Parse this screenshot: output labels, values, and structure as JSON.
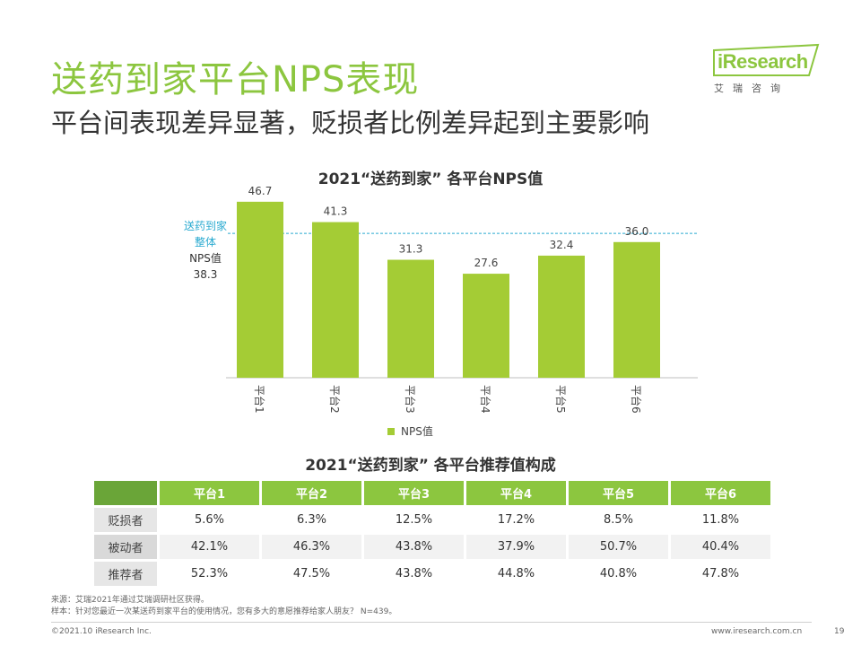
{
  "header": {
    "title": "送药到家平台NPS表现",
    "subtitle": "平台间表现差异显著，贬损者比例差异起到主要影响"
  },
  "logo": {
    "brand": "iResearch",
    "cn": "艾瑞咨询",
    "color": "#8cc63f"
  },
  "chart_data": {
    "type": "bar",
    "title": "2021“送药到家” 各平台NPS值",
    "categories": [
      "平台1",
      "平台2",
      "平台3",
      "平台4",
      "平台5",
      "平台6"
    ],
    "series": [
      {
        "name": "NPS值",
        "values": [
          46.7,
          41.3,
          31.3,
          27.6,
          32.4,
          36.0
        ],
        "labels": [
          "46.7",
          "41.3",
          "31.3",
          "27.6",
          "32.4",
          "36.0"
        ],
        "color": "#a4cc35"
      }
    ],
    "ylim": [
      0,
      50
    ],
    "reference_line": {
      "value": 38.3,
      "color": "#2aaad0",
      "style": "dashed"
    },
    "legend": "bottom-center"
  },
  "overall": {
    "line1": "送药到家",
    "line2": "整体",
    "line3": "NPS值",
    "line4": "38.3"
  },
  "table": {
    "title": "2021“送药到家” 各平台推荐值构成",
    "headers": [
      "平台1",
      "平台2",
      "平台3",
      "平台4",
      "平台5",
      "平台6"
    ],
    "rows": [
      {
        "label": "贬损者",
        "values": [
          "5.6%",
          "6.3%",
          "12.5%",
          "17.2%",
          "8.5%",
          "11.8%"
        ]
      },
      {
        "label": "被动者",
        "values": [
          "42.1%",
          "46.3%",
          "43.8%",
          "37.9%",
          "50.7%",
          "40.4%"
        ]
      },
      {
        "label": "推荐者",
        "values": [
          "52.3%",
          "47.5%",
          "43.8%",
          "44.8%",
          "40.8%",
          "47.8%"
        ]
      }
    ],
    "header_color": "#8cc63f"
  },
  "notes": {
    "source": "来源：艾瑞2021年通过艾瑞调研社区获得。",
    "sample": "样本：针对您最近一次某送药到家平台的使用情况，您有多大的意愿推荐给家人朋友？ N=439。"
  },
  "footer": {
    "copyright": "©2021.10 iResearch Inc.",
    "url": "www.iresearch.com.cn",
    "page": "19"
  }
}
